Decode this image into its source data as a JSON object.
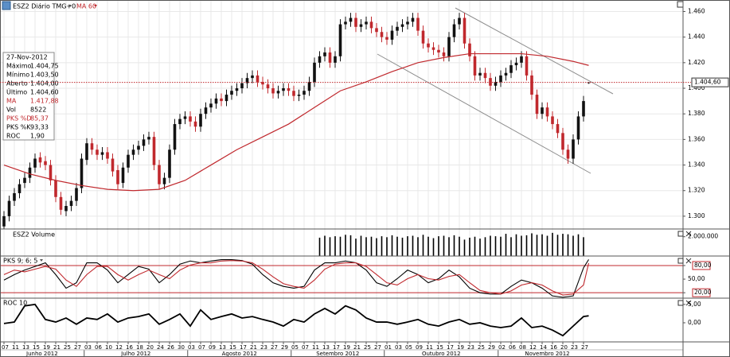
{
  "chart_data": [
    {
      "type": "candlestick",
      "title": "ESZ2 Diário TMG+0",
      "categories": [
        "07",
        null,
        "11",
        null,
        "13",
        null,
        "15",
        null,
        "19",
        null,
        "21",
        null,
        "25",
        null,
        "27",
        null,
        "03",
        null,
        "06",
        null,
        "10",
        null,
        "12",
        null,
        "16",
        null,
        "18",
        null,
        "20",
        null,
        "24",
        null,
        "26",
        null,
        "30",
        null,
        "03",
        null,
        "07",
        null,
        "09",
        null,
        "13",
        null,
        "15",
        null,
        "17",
        null,
        "21",
        null,
        "23",
        null,
        "27",
        null,
        "29",
        null,
        "05",
        null,
        "07",
        null,
        "11",
        null,
        "13",
        null,
        "17",
        null,
        "19",
        null,
        "21",
        null,
        "25",
        null,
        "27",
        null,
        "01",
        null,
        "03",
        null,
        "05",
        null,
        "09",
        null,
        "11",
        null,
        "15",
        null,
        "17",
        null,
        "19",
        null,
        "23",
        null,
        "25",
        null,
        "29",
        null,
        "02",
        null,
        "06",
        null,
        "08",
        null,
        "12",
        null,
        "14",
        null,
        "16",
        null,
        "20",
        null,
        "23",
        null,
        "27",
        null
      ],
      "months": [
        "Junho 2012",
        "Julho 2012",
        "Agosto 2012",
        "Setembro 2012",
        "Outubro 2012",
        "Novembro 2012"
      ],
      "open": [
        1292,
        1300,
        1312,
        1318,
        1326,
        1330,
        1338,
        1346,
        1343,
        1340,
        1328,
        1315,
        1304,
        1308,
        1312,
        1322,
        1344,
        1357,
        1352,
        1348,
        1350,
        1345,
        1336,
        1326,
        1338,
        1348,
        1352,
        1355,
        1360,
        1362,
        1340,
        1325,
        1330,
        1352,
        1372,
        1376,
        1378,
        1374,
        1370,
        1380,
        1385,
        1388,
        1392,
        1390,
        1395,
        1398,
        1400,
        1404,
        1408,
        1410,
        1405,
        1403,
        1400,
        1396,
        1398,
        1400,
        1398,
        1394,
        1395,
        1398,
        1405,
        1420,
        1425,
        1428,
        1420,
        1425,
        1450,
        1452,
        1455,
        1448,
        1450,
        1452,
        1447,
        1444,
        1440,
        1438,
        1445,
        1448,
        1450,
        1452,
        1455,
        1445,
        1435,
        1432,
        1430,
        1428,
        1425,
        1440,
        1450,
        1455,
        1435,
        1425,
        1410,
        1412,
        1408,
        1402,
        1405,
        1410,
        1412,
        1418,
        1420,
        1425,
        1410,
        1395,
        1380,
        1385,
        1378,
        1372,
        1365,
        1352,
        1345,
        1360,
        1378,
        1404.0
      ],
      "high": [
        1304,
        1316,
        1322,
        1329,
        1334,
        1342,
        1349,
        1350,
        1347,
        1344,
        1332,
        1319,
        1312,
        1316,
        1326,
        1349,
        1361,
        1361,
        1356,
        1354,
        1354,
        1349,
        1340,
        1342,
        1352,
        1356,
        1359,
        1364,
        1366,
        1366,
        1344,
        1334,
        1356,
        1376,
        1380,
        1382,
        1382,
        1378,
        1384,
        1389,
        1392,
        1396,
        1396,
        1399,
        1402,
        1404,
        1408,
        1412,
        1414,
        1414,
        1409,
        1407,
        1404,
        1402,
        1404,
        1404,
        1402,
        1399,
        1402,
        1409,
        1424,
        1429,
        1432,
        1432,
        1429,
        1454,
        1456,
        1459,
        1459,
        1454,
        1456,
        1456,
        1451,
        1448,
        1444,
        1449,
        1452,
        1454,
        1456,
        1459,
        1459,
        1449,
        1439,
        1436,
        1434,
        1432,
        1444,
        1454,
        1459,
        1459,
        1439,
        1429,
        1416,
        1416,
        1412,
        1409,
        1414,
        1416,
        1422,
        1424,
        1429,
        1429,
        1414,
        1399,
        1389,
        1389,
        1382,
        1376,
        1369,
        1356,
        1364,
        1382,
        1394,
        1404.75
      ],
      "low": [
        1288,
        1296,
        1308,
        1314,
        1322,
        1326,
        1334,
        1338,
        1336,
        1324,
        1311,
        1301,
        1300,
        1304,
        1308,
        1318,
        1340,
        1348,
        1344,
        1344,
        1341,
        1331,
        1321,
        1322,
        1334,
        1344,
        1348,
        1351,
        1356,
        1336,
        1321,
        1321,
        1326,
        1348,
        1368,
        1372,
        1370,
        1366,
        1366,
        1376,
        1381,
        1384,
        1386,
        1386,
        1391,
        1394,
        1396,
        1400,
        1404,
        1401,
        1399,
        1396,
        1392,
        1392,
        1394,
        1394,
        1390,
        1390,
        1391,
        1394,
        1401,
        1416,
        1421,
        1416,
        1416,
        1421,
        1446,
        1448,
        1444,
        1444,
        1446,
        1443,
        1440,
        1436,
        1434,
        1434,
        1441,
        1444,
        1446,
        1448,
        1441,
        1431,
        1428,
        1426,
        1424,
        1421,
        1421,
        1436,
        1446,
        1431,
        1421,
        1406,
        1406,
        1404,
        1398,
        1398,
        1401,
        1406,
        1408,
        1414,
        1416,
        1406,
        1391,
        1376,
        1376,
        1374,
        1368,
        1361,
        1348,
        1341,
        1341,
        1356,
        1374,
        1403.5
      ],
      "close": [
        1300,
        1312,
        1318,
        1325,
        1330,
        1338,
        1345,
        1342,
        1340,
        1328,
        1315,
        1305,
        1308,
        1312,
        1322,
        1345,
        1357,
        1352,
        1348,
        1350,
        1345,
        1335,
        1325,
        1338,
        1348,
        1352,
        1355,
        1360,
        1362,
        1340,
        1325,
        1330,
        1352,
        1372,
        1376,
        1378,
        1374,
        1370,
        1380,
        1385,
        1388,
        1392,
        1390,
        1395,
        1398,
        1400,
        1404,
        1408,
        1410,
        1405,
        1403,
        1400,
        1396,
        1398,
        1400,
        1398,
        1394,
        1395,
        1398,
        1405,
        1420,
        1425,
        1428,
        1420,
        1425,
        1450,
        1452,
        1455,
        1448,
        1450,
        1452,
        1447,
        1444,
        1440,
        1438,
        1445,
        1448,
        1450,
        1452,
        1455,
        1445,
        1435,
        1432,
        1430,
        1428,
        1425,
        1440,
        1450,
        1455,
        1435,
        1425,
        1410,
        1412,
        1408,
        1402,
        1405,
        1410,
        1412,
        1418,
        1420,
        1425,
        1410,
        1395,
        1380,
        1385,
        1378,
        1372,
        1365,
        1352,
        1345,
        1360,
        1378,
        1390,
        1404.6
      ],
      "up_color": "#111111",
      "down_color": "#c0282d",
      "ma": {
        "name": "MA 60",
        "color": "#c0282d",
        "x": [
          0,
          5,
          10,
          15,
          20,
          25,
          30,
          35,
          40,
          45,
          50,
          55,
          60,
          65,
          70,
          75,
          80,
          85,
          90,
          95,
          100,
          105,
          110,
          113
        ],
        "values": [
          1340,
          1333,
          1328,
          1324,
          1321,
          1320,
          1321,
          1328,
          1340,
          1352,
          1362,
          1372,
          1385,
          1398,
          1405,
          1413,
          1420,
          1424,
          1427,
          1427,
          1427,
          1425,
          1421,
          1417.88
        ]
      },
      "last_price": {
        "value": 1404.6,
        "label": "1.404,60",
        "color": "#c0282d"
      },
      "ylim": [
        1290,
        1469
      ],
      "yticks": [
        {
          "value": 1300,
          "label": "1.300"
        },
        {
          "value": 1320,
          "label": "1.320"
        },
        {
          "value": 1340,
          "label": "1.340"
        },
        {
          "value": 1360,
          "label": "1.360"
        },
        {
          "value": 1380,
          "label": "1.380"
        },
        {
          "value": 1400,
          "label": "1.400"
        },
        {
          "value": 1420,
          "label": "1.420"
        },
        {
          "value": 1440,
          "label": "1.440"
        },
        {
          "value": 1460,
          "label": "1.460"
        }
      ],
      "grid": true,
      "info": {
        "date": "27-Nov-2012",
        "rows": [
          {
            "label": "Máximo",
            "value": "1.404,75"
          },
          {
            "label": "Mínimo",
            "value": "1.403,50"
          },
          {
            "label": "Aberto",
            "value": "1.404,00"
          },
          {
            "label": "Último",
            "value": "1.404,60"
          },
          {
            "label": "MA",
            "value": "1.417,88",
            "color": "#c0282d"
          },
          {
            "label": "Vol",
            "value": "8522"
          },
          {
            "label": "PKS %D",
            "value": "85,37",
            "color": "#c0282d"
          },
          {
            "label": "PKS %K",
            "value": "93,33"
          },
          {
            "label": "ROC",
            "value": "1,90"
          }
        ]
      }
    },
    {
      "type": "bar",
      "title": "ESZ2 Volume",
      "color": "#000000",
      "values": [
        null,
        null,
        null,
        null,
        null,
        null,
        null,
        null,
        null,
        null,
        null,
        null,
        null,
        null,
        null,
        null,
        null,
        null,
        null,
        null,
        null,
        null,
        null,
        null,
        null,
        null,
        null,
        null,
        null,
        null,
        null,
        null,
        null,
        null,
        null,
        null,
        null,
        null,
        null,
        null,
        null,
        null,
        null,
        null,
        null,
        null,
        null,
        null,
        null,
        null,
        null,
        null,
        null,
        null,
        null,
        null,
        null,
        null,
        null,
        null,
        null,
        1900000,
        2100000,
        1950000,
        2050000,
        2000000,
        2200000,
        2150000,
        1800000,
        2100000,
        1950000,
        2000000,
        1850000,
        2050000,
        1950000,
        2150000,
        2000000,
        1900000,
        2050000,
        2100000,
        1950000,
        2200000,
        2000000,
        1850000,
        2050000,
        2100000,
        1950000,
        2150000,
        2000000,
        1700000,
        1900000,
        2000000,
        1800000,
        1950000,
        2100000,
        2050000,
        2000000,
        2300000,
        1950000,
        2250000,
        2100000,
        2150000,
        2350000,
        2200000,
        2250000,
        2100000,
        2400000,
        2200000,
        2300000,
        2250000,
        2100000,
        2250000,
        1950000,
        8522
      ],
      "ylim": [
        0,
        2800000
      ],
      "yticks": [
        {
          "value": 2000000,
          "label": "2.000.000"
        }
      ]
    },
    {
      "type": "line",
      "title": "PKS 9; 6; 5",
      "x": [
        0,
        2,
        4,
        6,
        8,
        10,
        12,
        14,
        16,
        18,
        20,
        22,
        24,
        26,
        28,
        30,
        32,
        34,
        36,
        38,
        40,
        42,
        44,
        46,
        48,
        50,
        52,
        54,
        56,
        58,
        60,
        62,
        64,
        66,
        68,
        70,
        72,
        74,
        76,
        78,
        80,
        82,
        84,
        86,
        88,
        90,
        92,
        94,
        96,
        98,
        100,
        102,
        104,
        106,
        108,
        110,
        112,
        113
      ],
      "series": [
        {
          "color": "#000000",
          "values": [
            48,
            60,
            70,
            78,
            86,
            60,
            30,
            42,
            86,
            86,
            70,
            42,
            60,
            78,
            72,
            42,
            60,
            83,
            90,
            86,
            90,
            93,
            93,
            91,
            83,
            60,
            42,
            34,
            30,
            34,
            70,
            86,
            86,
            90,
            86,
            70,
            42,
            34,
            51,
            70,
            60,
            42,
            51,
            70,
            55,
            30,
            20,
            17,
            17,
            34,
            48,
            42,
            30,
            13,
            10,
            13,
            75,
            93.33
          ]
        },
        {
          "color": "#c0282d",
          "values": [
            60,
            70,
            66,
            72,
            78,
            72,
            48,
            34,
            60,
            78,
            78,
            60,
            48,
            60,
            70,
            60,
            51,
            70,
            81,
            86,
            86,
            90,
            91,
            90,
            86,
            72,
            55,
            40,
            34,
            30,
            48,
            72,
            83,
            86,
            86,
            78,
            60,
            42,
            37,
            51,
            60,
            51,
            48,
            56,
            60,
            42,
            25,
            20,
            17,
            24,
            37,
            42,
            37,
            24,
            15,
            17,
            37,
            85.37
          ]
        }
      ],
      "levels": [
        80,
        20
      ],
      "level_color": "#c0282d",
      "ylim": [
        8,
        101
      ],
      "yticks": [
        {
          "value": 80,
          "label": "80,00"
        },
        {
          "value": 50,
          "label": "50,00"
        },
        {
          "value": 20,
          "label": "20,00"
        }
      ]
    },
    {
      "type": "line",
      "title": "ROC 10",
      "x": [
        0,
        2,
        4,
        6,
        8,
        10,
        12,
        14,
        16,
        18,
        20,
        22,
        24,
        26,
        28,
        30,
        32,
        34,
        36,
        38,
        40,
        42,
        44,
        46,
        48,
        50,
        52,
        54,
        56,
        58,
        60,
        62,
        64,
        66,
        68,
        70,
        72,
        74,
        76,
        78,
        80,
        82,
        84,
        86,
        88,
        90,
        92,
        94,
        96,
        98,
        100,
        102,
        104,
        106,
        108,
        110,
        112,
        113
      ],
      "series": [
        {
          "color": "#000000",
          "values": [
            -0.2,
            0.2,
            4.6,
            5,
            0.9,
            0.2,
            1.3,
            -0.4,
            1.3,
            0.9,
            2.4,
            0.2,
            1.3,
            1.7,
            2.4,
            -0.4,
            0.9,
            2.4,
            -0.9,
            3.5,
            0.9,
            1.7,
            2.4,
            1.3,
            1.7,
            0.9,
            0.2,
            -0.9,
            0.9,
            0.2,
            2.4,
            3.9,
            2.4,
            4.6,
            3.5,
            1.3,
            0.2,
            0.2,
            -0.4,
            0.2,
            0.9,
            -0.4,
            -0.9,
            0.2,
            0.9,
            -0.4,
            0,
            -0.9,
            -1.3,
            -0.9,
            1.3,
            -1.3,
            -0.9,
            -2,
            -3.5,
            -0.9,
            1.7,
            1.9
          ]
        }
      ],
      "ylim": [
        -5.2,
        6.7
      ],
      "yticks": [
        {
          "value": 5,
          "label": "5,00"
        },
        {
          "value": 0,
          "label": "0,00"
        }
      ]
    }
  ]
}
